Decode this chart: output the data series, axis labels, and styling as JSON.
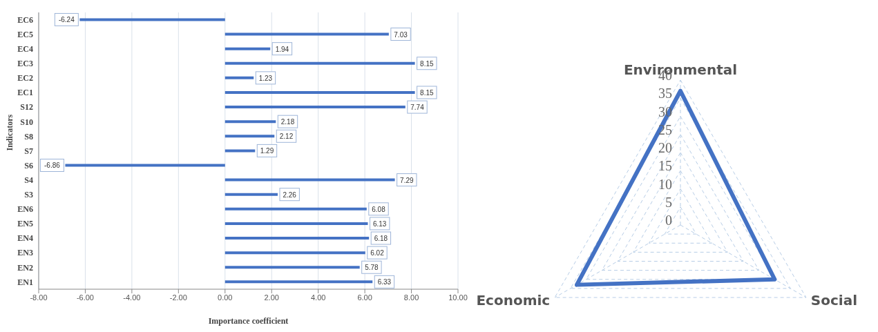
{
  "chart_data": [
    {
      "type": "bar",
      "orientation": "horizontal",
      "xlabel": "Importance coefficient",
      "ylabel": "Indicators",
      "categories": [
        "EC6",
        "EC5",
        "EC4",
        "EC3",
        "EC2",
        "EC1",
        "S12",
        "S10",
        "S8",
        "S7",
        "S6",
        "S4",
        "S3",
        "EN6",
        "EN5",
        "EN4",
        "EN3",
        "EN2",
        "EN1"
      ],
      "values": [
        -6.24,
        7.03,
        1.94,
        8.15,
        1.23,
        8.15,
        7.74,
        2.18,
        2.12,
        1.29,
        -6.86,
        7.29,
        2.26,
        6.08,
        6.13,
        6.18,
        6.02,
        5.78,
        6.33
      ],
      "color": "#4472c4",
      "data_labels": true,
      "xlim": [
        -8,
        10
      ],
      "xticks": [
        {
          "value": -8,
          "label": "-8.00"
        },
        {
          "value": -6,
          "label": "-6.00"
        },
        {
          "value": -4,
          "label": "-4.00"
        },
        {
          "value": -2,
          "label": "-2.00"
        },
        {
          "value": 0,
          "label": "0.00"
        },
        {
          "value": 2,
          "label": "2.00"
        },
        {
          "value": 4,
          "label": "4.00"
        },
        {
          "value": 6,
          "label": "6.00"
        },
        {
          "value": 8,
          "label": "8.00"
        },
        {
          "value": 10,
          "label": "10.00"
        }
      ],
      "grid": "x"
    },
    {
      "type": "radar",
      "categories": [
        "Environmental",
        "Social",
        "Economic"
      ],
      "series": [
        {
          "color": "#4472c4",
          "values": [
            37,
            30,
            33
          ]
        }
      ],
      "ylim": [
        0,
        40
      ],
      "yticks": [
        0,
        5,
        10,
        15,
        20,
        25,
        30,
        35,
        40
      ],
      "grid": true
    }
  ]
}
